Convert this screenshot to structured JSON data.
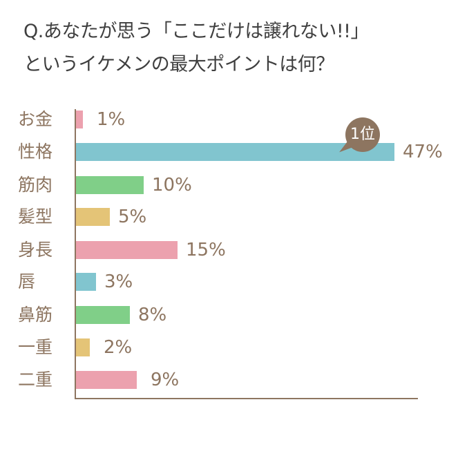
{
  "title": {
    "line1": "Q.あなたが思う「ここだけは譲れない!!」",
    "line2": "というイケメンの最大ポイントは何？"
  },
  "badge": {
    "label": "1位",
    "color": "#8d7560"
  },
  "colors": {
    "pink": "#eca1ae",
    "teal": "#81c5cf",
    "green": "#80cf88",
    "yellow": "#e4c477",
    "text": "#8d7560"
  },
  "rows": [
    {
      "label": "お金",
      "value": "1%"
    },
    {
      "label": "性格",
      "value": "47%"
    },
    {
      "label": "筋肉",
      "value": "10%"
    },
    {
      "label": "髪型",
      "value": "5%"
    },
    {
      "label": "身長",
      "value": "15%"
    },
    {
      "label": "唇",
      "value": "3%"
    },
    {
      "label": "鼻筋",
      "value": "8%"
    },
    {
      "label": "一重",
      "value": "2%"
    },
    {
      "label": "二重",
      "value": "9%"
    }
  ],
  "chart_data": {
    "type": "bar",
    "orientation": "horizontal",
    "title": "Q.あなたが思う「ここだけは譲れない!!」というイケメンの最大ポイントは何？",
    "categories": [
      "お金",
      "性格",
      "筋肉",
      "髪型",
      "身長",
      "唇",
      "鼻筋",
      "一重",
      "二重"
    ],
    "values": [
      1,
      47,
      10,
      5,
      15,
      3,
      8,
      2,
      9
    ],
    "unit": "%",
    "bar_colors": [
      "#eca1ae",
      "#81c5cf",
      "#80cf88",
      "#e4c477",
      "#eca1ae",
      "#81c5cf",
      "#80cf88",
      "#e4c477",
      "#eca1ae"
    ],
    "annotations": [
      {
        "category": "性格",
        "text": "1位"
      }
    ],
    "xlabel": "",
    "ylabel": "",
    "xlim": [
      0,
      50
    ],
    "grid": false,
    "legend": false
  }
}
